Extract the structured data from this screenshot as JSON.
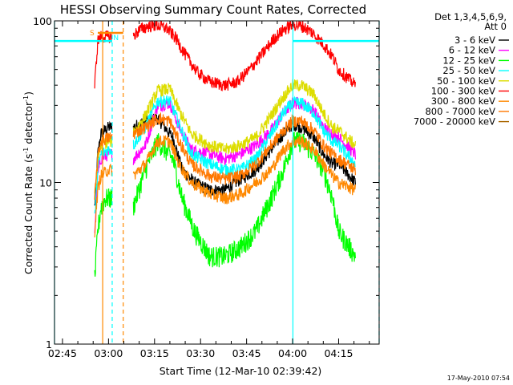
{
  "chart_data": {
    "type": "line",
    "title": "HESSI Observing Summary Count Rates, Corrected",
    "xlabel": "Start Time (12-Mar-10 02:39:42)",
    "ylabel": "Corrected Count Rate (s⁻¹ detector⁻¹)",
    "ylabel_main": "Corrected Count Rate (s",
    "ylabel_sup1": "-1",
    "ylabel_mid": " detector",
    "ylabel_sup2": "-1",
    "ylabel_end": ")",
    "yscale": "log",
    "ylim": [
      1,
      100
    ],
    "xlim_minutes": [
      -2.6,
      103.2
    ],
    "x_ticks": [
      {
        "label": "02:45",
        "minutes": 0
      },
      {
        "label": "03:00",
        "minutes": 15
      },
      {
        "label": "03:15",
        "minutes": 30
      },
      {
        "label": "03:30",
        "minutes": 45
      },
      {
        "label": "03:45",
        "minutes": 60
      },
      {
        "label": "04:00",
        "minutes": 75
      },
      {
        "label": "04:15",
        "minutes": 90
      }
    ],
    "y_ticks": [
      {
        "label": "1",
        "value": 1
      },
      {
        "label": "10",
        "value": 10
      },
      {
        "label": "100",
        "value": 100
      }
    ],
    "legend_header": [
      "Det 1,3,4,5,6,9,",
      "Att 0"
    ],
    "legend_position": "right",
    "series": [
      {
        "name": "3 - 6 keV",
        "color": "#000000",
        "points": [
          [
            10.5,
            7
          ],
          [
            11.5,
            15
          ],
          [
            12.5,
            20
          ],
          [
            15,
            22
          ],
          [
            18,
            22
          ],
          [
            23,
            22
          ],
          [
            27,
            24
          ],
          [
            31,
            25
          ],
          [
            36,
            19
          ],
          [
            39,
            12
          ],
          [
            43,
            10
          ],
          [
            48,
            9
          ],
          [
            53,
            9
          ],
          [
            58,
            10.5
          ],
          [
            63,
            12
          ],
          [
            68,
            16
          ],
          [
            72,
            20
          ],
          [
            75,
            23
          ],
          [
            78,
            22
          ],
          [
            82,
            19
          ],
          [
            85,
            15
          ],
          [
            88,
            13
          ],
          [
            90,
            13
          ],
          [
            95.5,
            10
          ]
        ]
      },
      {
        "name": "6 - 12 keV",
        "color": "#ff00ff",
        "points": [
          [
            10.5,
            5
          ],
          [
            11.5,
            11
          ],
          [
            12.5,
            14
          ],
          [
            15,
            15
          ],
          [
            18,
            15
          ],
          [
            23,
            14
          ],
          [
            27,
            17
          ],
          [
            31,
            30
          ],
          [
            35,
            31
          ],
          [
            38,
            22
          ],
          [
            42,
            16
          ],
          [
            48,
            15
          ],
          [
            53,
            14
          ],
          [
            58,
            15
          ],
          [
            63,
            17
          ],
          [
            68,
            21
          ],
          [
            72,
            27
          ],
          [
            75,
            31
          ],
          [
            78,
            31
          ],
          [
            82,
            28
          ],
          [
            85,
            22
          ],
          [
            88,
            20
          ],
          [
            90,
            19
          ],
          [
            95.5,
            15
          ]
        ]
      },
      {
        "name": "12 - 25 keV",
        "color": "#00ff00",
        "points": [
          [
            10.5,
            2.5
          ],
          [
            11.5,
            5
          ],
          [
            12.5,
            7
          ],
          [
            14,
            8
          ],
          [
            16,
            8
          ],
          [
            23,
            7
          ],
          [
            27,
            12
          ],
          [
            31,
            18
          ],
          [
            36,
            14
          ],
          [
            39,
            8
          ],
          [
            43,
            5
          ],
          [
            48,
            3.5
          ],
          [
            53,
            3.5
          ],
          [
            58,
            4
          ],
          [
            63,
            5
          ],
          [
            68,
            8
          ],
          [
            72,
            12
          ],
          [
            75,
            18
          ],
          [
            78,
            18
          ],
          [
            82,
            15
          ],
          [
            85,
            12
          ],
          [
            88,
            8
          ],
          [
            90,
            5
          ],
          [
            95.5,
            3.5
          ]
        ]
      },
      {
        "name": "25 - 50 keV",
        "color": "#00ffff",
        "points": [
          [
            10.5,
            6
          ],
          [
            11.5,
            12
          ],
          [
            12.5,
            15
          ],
          [
            15,
            16
          ],
          [
            18,
            16
          ],
          [
            23,
            17
          ],
          [
            27,
            22
          ],
          [
            31,
            32
          ],
          [
            35,
            32
          ],
          [
            38,
            23
          ],
          [
            42,
            15
          ],
          [
            48,
            13
          ],
          [
            53,
            12
          ],
          [
            58,
            12
          ],
          [
            63,
            14
          ],
          [
            68,
            20
          ],
          [
            72,
            27
          ],
          [
            75,
            31
          ],
          [
            78,
            31
          ],
          [
            82,
            27
          ],
          [
            85,
            21
          ],
          [
            88,
            18
          ],
          [
            90,
            17
          ],
          [
            95.5,
            13
          ]
        ]
      },
      {
        "name": "50 - 100 keV",
        "color": "#dddd00",
        "points": [
          [
            10.5,
            8
          ],
          [
            11.5,
            14
          ],
          [
            12.5,
            17
          ],
          [
            15,
            18
          ],
          [
            18,
            18
          ],
          [
            23,
            20
          ],
          [
            27,
            26
          ],
          [
            31,
            37
          ],
          [
            35,
            38
          ],
          [
            38,
            28
          ],
          [
            42,
            20
          ],
          [
            48,
            17
          ],
          [
            53,
            16
          ],
          [
            58,
            17
          ],
          [
            63,
            19
          ],
          [
            68,
            26
          ],
          [
            72,
            34
          ],
          [
            75,
            40
          ],
          [
            78,
            40
          ],
          [
            82,
            35
          ],
          [
            85,
            27
          ],
          [
            88,
            22
          ],
          [
            90,
            21
          ],
          [
            95.5,
            17
          ]
        ]
      },
      {
        "name": "100 - 300 keV",
        "color": "#ff0000",
        "points": [
          [
            10.5,
            40
          ],
          [
            11.5,
            75
          ],
          [
            12.5,
            80
          ],
          [
            16,
            80
          ],
          [
            23,
            80
          ],
          [
            25,
            88
          ],
          [
            28,
            93
          ],
          [
            31,
            94
          ],
          [
            34,
            90
          ],
          [
            37,
            78
          ],
          [
            40,
            62
          ],
          [
            44,
            48
          ],
          [
            48,
            42
          ],
          [
            53,
            40
          ],
          [
            57,
            42
          ],
          [
            61,
            50
          ],
          [
            65,
            62
          ],
          [
            69,
            78
          ],
          [
            72,
            88
          ],
          [
            75,
            95
          ],
          [
            78,
            93
          ],
          [
            81,
            86
          ],
          [
            85,
            72
          ],
          [
            88,
            60
          ],
          [
            90,
            50
          ],
          [
            95.5,
            40
          ]
        ]
      },
      {
        "name": "300 - 800 keV",
        "color": "#ff8800",
        "points": [
          [
            10.5,
            5
          ],
          [
            11.5,
            9
          ],
          [
            12.5,
            11
          ],
          [
            15,
            12
          ],
          [
            18,
            12
          ],
          [
            23,
            11
          ],
          [
            27,
            13
          ],
          [
            31,
            18
          ],
          [
            35,
            18
          ],
          [
            38,
            13
          ],
          [
            42,
            10
          ],
          [
            48,
            8.5
          ],
          [
            53,
            8
          ],
          [
            58,
            8.5
          ],
          [
            63,
            10
          ],
          [
            68,
            12
          ],
          [
            72,
            16
          ],
          [
            75,
            18
          ],
          [
            78,
            18
          ],
          [
            82,
            16
          ],
          [
            85,
            13
          ],
          [
            88,
            11
          ],
          [
            90,
            10
          ],
          [
            95.5,
            9
          ]
        ]
      },
      {
        "name": "800 - 7000 keV",
        "color": "#ff7700",
        "points": [
          [
            10.5,
            8
          ],
          [
            11.5,
            14
          ],
          [
            12.5,
            18
          ],
          [
            15,
            19
          ],
          [
            18,
            19
          ],
          [
            23,
            20
          ],
          [
            27,
            22
          ],
          [
            31,
            25
          ],
          [
            35,
            24
          ],
          [
            38,
            18
          ],
          [
            42,
            13
          ],
          [
            48,
            11
          ],
          [
            53,
            10.5
          ],
          [
            58,
            11
          ],
          [
            63,
            13
          ],
          [
            68,
            17
          ],
          [
            72,
            21
          ],
          [
            75,
            24
          ],
          [
            78,
            24
          ],
          [
            82,
            21
          ],
          [
            85,
            17
          ],
          [
            88,
            15
          ],
          [
            90,
            14
          ],
          [
            95.5,
            12
          ]
        ]
      },
      {
        "name": "7000 - 20000 keV",
        "color": "#aa6600",
        "points": []
      }
    ],
    "markers": [
      {
        "label": "S",
        "color": "#ff8800",
        "minutes": 11.5
      },
      {
        "label": "N",
        "color": "#00ffff",
        "minutes": 15.8
      }
    ],
    "reference_lines": {
      "color": "#00ffff",
      "level": 75,
      "ranges": [
        [
          -2.6,
          16.2
        ],
        [
          75.1,
          103.2
        ]
      ],
      "vertical_minutes": [
        -2.6,
        16.2,
        75.1,
        103.2
      ]
    },
    "dashed_lines": [
      {
        "color": "#00ffff",
        "minutes": 16.2
      },
      {
        "color": "#ff8800",
        "minutes": 19.8
      },
      {
        "color": "#00ffff",
        "minutes": 103.2
      }
    ],
    "solid_lines": [
      {
        "color": "#ff8800",
        "minutes": 13.1
      },
      {
        "color": "#00ffff",
        "minutes": 75.1
      },
      {
        "color": "#00ffff",
        "minutes": -2.6
      }
    ],
    "gaps_minutes": [
      [
        16.2,
        23.1
      ]
    ],
    "timestamp": "17-May-2010 07:54"
  }
}
